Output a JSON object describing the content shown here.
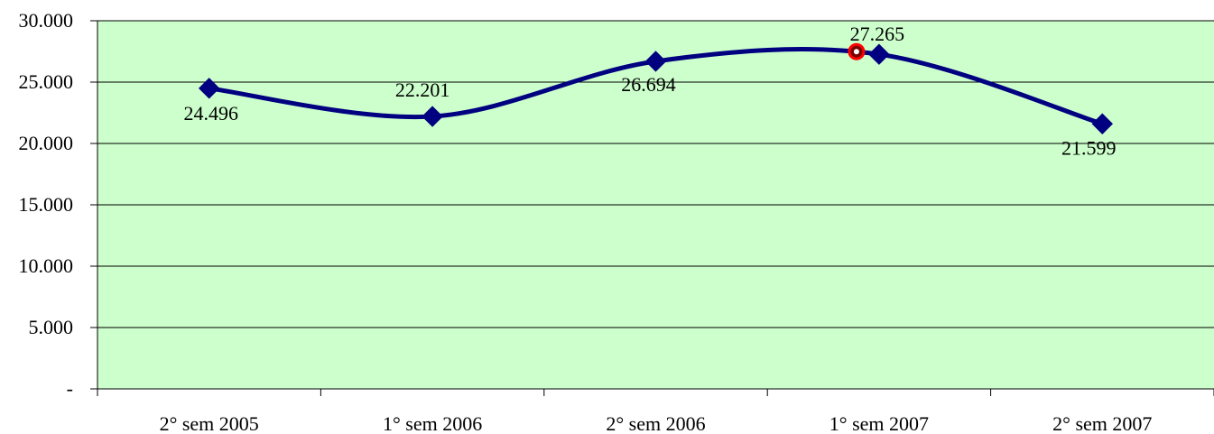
{
  "chart_data": {
    "type": "line",
    "title": "",
    "xlabel": "",
    "ylabel": "",
    "categories": [
      "2° sem 2005",
      "1° sem 2006",
      "2° sem 2006",
      "1° sem 2007",
      "2° sem 2007"
    ],
    "series": [
      {
        "values": [
          24496,
          22201,
          26694,
          27265,
          21599
        ],
        "data_labels": [
          "24.496",
          "22.201",
          "26.694",
          "27.265",
          "21.599"
        ],
        "color": "#000080",
        "marker": "diamond",
        "smooth": true
      }
    ],
    "ylim": [
      0,
      30000
    ],
    "y_ticks": [
      0,
      5000,
      10000,
      15000,
      20000,
      25000,
      30000
    ],
    "y_tick_labels": [
      "-",
      "5.000",
      "10.000",
      "15.000",
      "20.000",
      "25.000",
      "30.000"
    ],
    "grid": true,
    "plot_background": "#CCFFCC",
    "gridline_color": "#000000",
    "highlight_marker": {
      "category": "1° sem 2007",
      "style": "red circle",
      "color": "#FF0000"
    }
  }
}
